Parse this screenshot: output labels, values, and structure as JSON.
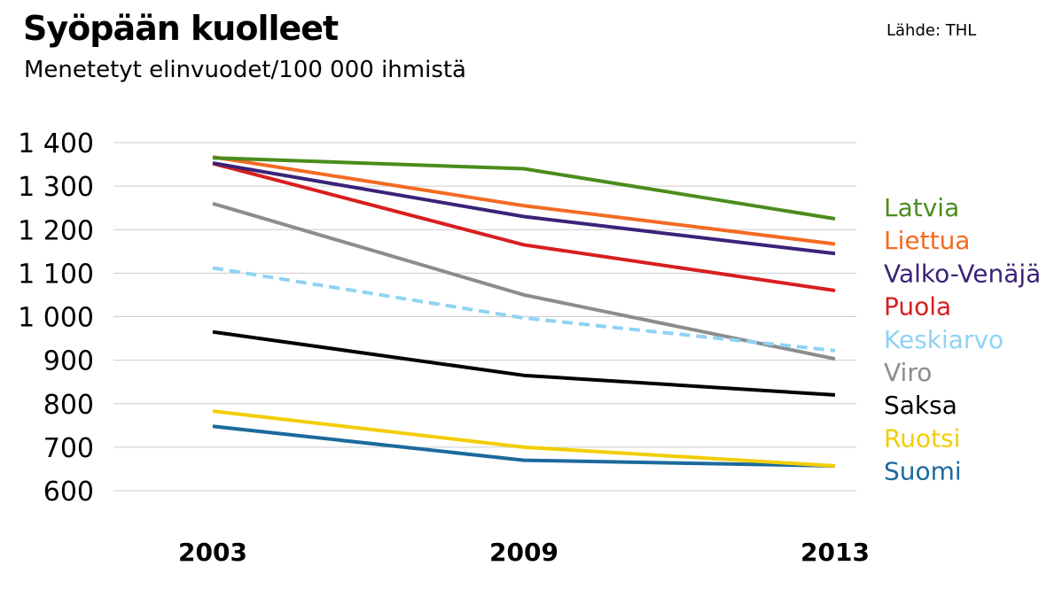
{
  "header": {
    "title": "Syöpään kuolleet",
    "subtitle": "Menetetyt elinvuodet/100 000 ihmistä",
    "source": "Lähde: THL"
  },
  "chart_data": {
    "type": "line",
    "title": "Syöpään kuolleet",
    "subtitle": "Menetetyt elinvuodet/100 000 ihmistä",
    "xlabel": "",
    "ylabel": "",
    "x": [
      "2003",
      "2009",
      "2013"
    ],
    "ylim": [
      600,
      1400
    ],
    "yticks": [
      600,
      700,
      800,
      900,
      1000,
      1100,
      1200,
      1300,
      1400
    ],
    "ytick_labels": [
      "600",
      "700",
      "800",
      "900",
      "1 000",
      "1 100",
      "1 200",
      "1 300",
      "1 400"
    ],
    "grid": "horizontal",
    "legend_position": "right",
    "series": [
      {
        "name": "Latvia",
        "color": "#4a8c1c",
        "dashed": false,
        "values": [
          1365,
          1340,
          1225
        ]
      },
      {
        "name": "Liettua",
        "color": "#f26b22",
        "dashed": false,
        "values": [
          1367,
          1255,
          1167
        ]
      },
      {
        "name": "Valko-Venäjä",
        "color": "#3a2378",
        "dashed": false,
        "values": [
          1353,
          1230,
          1145
        ]
      },
      {
        "name": "Puola",
        "color": "#d81e1e",
        "dashed": false,
        "values": [
          1352,
          1165,
          1060
        ]
      },
      {
        "name": "Keskiarvo",
        "color": "#8fd3f4",
        "dashed": true,
        "values": [
          1112,
          997,
          922
        ]
      },
      {
        "name": "Viro",
        "color": "#8c8c8c",
        "dashed": false,
        "values": [
          1260,
          1050,
          903
        ]
      },
      {
        "name": "Saksa",
        "color": "#000000",
        "dashed": false,
        "values": [
          965,
          865,
          820
        ]
      },
      {
        "name": "Ruotsi",
        "color": "#f2cd00",
        "dashed": false,
        "values": [
          783,
          700,
          657
        ]
      },
      {
        "name": "Suomi",
        "color": "#1b6a9c",
        "dashed": false,
        "values": [
          748,
          670,
          657
        ]
      }
    ]
  }
}
